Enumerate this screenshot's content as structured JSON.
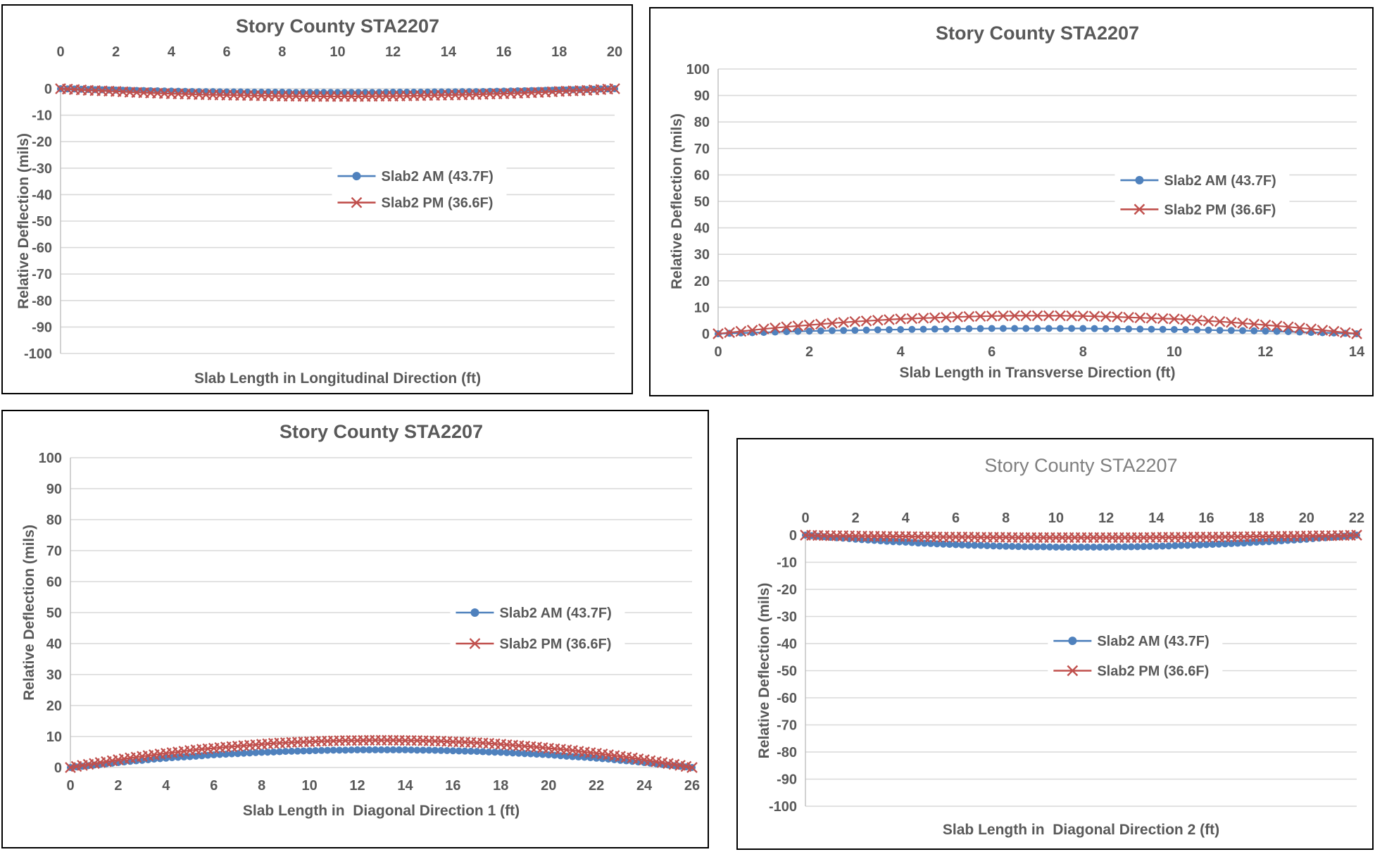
{
  "page": {
    "background": "#ffffff"
  },
  "colors": {
    "series_am": "#4F81BD",
    "series_pm": "#C0504D",
    "gridline": "#D9D9D9",
    "axis_line": "#BFBFBF",
    "text": "#595959",
    "light_title": "#7F7F7F",
    "panel_border": "#000000"
  },
  "chart_data": [
    {
      "type": "line",
      "title": "Story County STA2207",
      "title_style": "bold",
      "xlabel": "Slab Length in Longitudinal Direction (ft)",
      "ylabel": "Relative Deflection (mils)",
      "x_axis_position": "top",
      "legend_position": "inside-center-right",
      "grid": "horizontal",
      "xlim": [
        0,
        20
      ],
      "ylim": [
        -100,
        0
      ],
      "x_ticks": [
        0,
        2,
        4,
        6,
        8,
        10,
        12,
        14,
        16,
        18,
        20
      ],
      "y_ticks": [
        0,
        -10,
        -20,
        -30,
        -40,
        -50,
        -60,
        -70,
        -80,
        -90,
        -100
      ],
      "x_start": 0,
      "x_step": 0.5,
      "series": [
        {
          "name": "Slab2 AM (43.7F)",
          "color": "#4F81BD",
          "marker": "circle",
          "values": [
            0,
            -0.1,
            -0.3,
            -0.4,
            -0.5,
            -0.6,
            -0.7,
            -0.8,
            -0.9,
            -1.0,
            -1.1,
            -1.1,
            -1.2,
            -1.2,
            -1.3,
            -1.3,
            -1.3,
            -1.4,
            -1.4,
            -1.4,
            -1.4,
            -1.4,
            -1.4,
            -1.4,
            -1.3,
            -1.3,
            -1.3,
            -1.2,
            -1.2,
            -1.1,
            -1.1,
            -1.0,
            -0.9,
            -0.8,
            -0.7,
            -0.6,
            -0.5,
            -0.4,
            -0.3,
            -0.1,
            0
          ]
        },
        {
          "name": "Slab2 PM (36.6F)",
          "color": "#C0504D",
          "marker": "x",
          "values": [
            0,
            -0.3,
            -0.6,
            -0.8,
            -1.0,
            -1.3,
            -1.5,
            -1.7,
            -1.9,
            -2.0,
            -2.2,
            -2.3,
            -2.4,
            -2.5,
            -2.6,
            -2.7,
            -2.8,
            -2.8,
            -2.9,
            -2.9,
            -2.9,
            -2.9,
            -2.9,
            -2.8,
            -2.8,
            -2.7,
            -2.6,
            -2.5,
            -2.4,
            -2.3,
            -2.2,
            -2.0,
            -1.9,
            -1.7,
            -1.5,
            -1.3,
            -1.0,
            -0.8,
            -0.6,
            -0.3,
            0
          ]
        }
      ]
    },
    {
      "type": "line",
      "title": "Story County STA2207",
      "title_style": "bold",
      "xlabel": "Slab Length in Transverse Direction (ft)",
      "ylabel": "Relative Deflection (mils)",
      "x_axis_position": "bottom",
      "legend_position": "inside-center-right",
      "grid": "horizontal",
      "xlim": [
        0,
        14
      ],
      "ylim": [
        0,
        100
      ],
      "x_ticks": [
        0,
        2,
        4,
        6,
        8,
        10,
        12,
        14
      ],
      "y_ticks": [
        100,
        90,
        80,
        70,
        60,
        50,
        40,
        30,
        20,
        10,
        0
      ],
      "x_start": 0,
      "x_step": 0.5,
      "series": [
        {
          "name": "Slab2 AM (43.7F)",
          "color": "#4F81BD",
          "marker": "circle",
          "values": [
            0,
            0.3,
            0.5,
            0.8,
            1.0,
            1.2,
            1.3,
            1.5,
            1.6,
            1.7,
            1.8,
            1.9,
            2.0,
            2.0,
            2.0,
            2.0,
            2.0,
            1.9,
            1.8,
            1.7,
            1.6,
            1.5,
            1.3,
            1.2,
            1.0,
            0.8,
            0.5,
            0.3,
            0
          ]
        },
        {
          "name": "Slab2 PM (36.6F)",
          "color": "#C0504D",
          "marker": "x",
          "values": [
            0,
            0.9,
            1.8,
            2.6,
            3.3,
            4.0,
            4.6,
            5.1,
            5.6,
            5.9,
            6.2,
            6.5,
            6.7,
            6.8,
            6.8,
            6.8,
            6.7,
            6.5,
            6.2,
            5.9,
            5.6,
            5.1,
            4.6,
            4.0,
            3.3,
            2.6,
            1.8,
            0.9,
            0
          ]
        }
      ]
    },
    {
      "type": "line",
      "title": "Story County STA2207",
      "title_style": "bold",
      "xlabel": "Slab Length in  Diagonal Direction 1 (ft)",
      "ylabel": "Relative Deflection (mils)",
      "x_axis_position": "bottom",
      "legend_position": "inside-center-right",
      "grid": "horizontal",
      "xlim": [
        0,
        26
      ],
      "ylim": [
        0,
        100
      ],
      "x_ticks": [
        0,
        2,
        4,
        6,
        8,
        10,
        12,
        14,
        16,
        18,
        20,
        22,
        24,
        26
      ],
      "y_ticks": [
        100,
        90,
        80,
        70,
        60,
        50,
        40,
        30,
        20,
        10,
        0
      ],
      "x_start": 0,
      "x_step": 0.5,
      "series": [
        {
          "name": "Slab2 AM (43.7F)",
          "color": "#4F81BD",
          "marker": "circle",
          "values": [
            0,
            0.4,
            0.8,
            1.2,
            1.6,
            2.0,
            2.3,
            2.7,
            3.0,
            3.3,
            3.5,
            3.8,
            4.1,
            4.3,
            4.5,
            4.7,
            4.9,
            5.0,
            5.2,
            5.3,
            5.4,
            5.5,
            5.6,
            5.6,
            5.7,
            5.7,
            5.7,
            5.7,
            5.7,
            5.6,
            5.6,
            5.5,
            5.4,
            5.3,
            5.2,
            5.0,
            4.9,
            4.7,
            4.5,
            4.3,
            4.1,
            3.8,
            3.5,
            3.3,
            3.0,
            2.7,
            2.3,
            2.0,
            1.6,
            1.2,
            0.8,
            0.4,
            0
          ]
        },
        {
          "name": "Slab2 PM (36.6F)",
          "color": "#C0504D",
          "marker": "x",
          "values": [
            0,
            0.7,
            1.3,
            1.9,
            2.5,
            3.1,
            3.6,
            4.1,
            4.6,
            5.0,
            5.5,
            5.9,
            6.2,
            6.6,
            6.9,
            7.2,
            7.5,
            7.8,
            8.0,
            8.2,
            8.3,
            8.5,
            8.6,
            8.7,
            8.7,
            8.8,
            8.8,
            8.8,
            8.7,
            8.7,
            8.6,
            8.5,
            8.3,
            8.2,
            8.0,
            7.8,
            7.5,
            7.2,
            6.9,
            6.6,
            6.2,
            5.9,
            5.5,
            5.0,
            4.6,
            4.1,
            3.6,
            3.1,
            2.5,
            1.9,
            1.3,
            0.7,
            0
          ]
        }
      ]
    },
    {
      "type": "line",
      "title": "Story County STA2207",
      "title_style": "light",
      "xlabel": "Slab Length in  Diagonal Direction 2 (ft)",
      "ylabel": "Relative Deflection (mils)",
      "x_axis_position": "top",
      "legend_position": "inside-center-right",
      "grid": "horizontal",
      "xlim": [
        0,
        22
      ],
      "ylim": [
        -100,
        0
      ],
      "x_ticks": [
        0,
        2,
        4,
        6,
        8,
        10,
        12,
        14,
        16,
        18,
        20,
        22
      ],
      "y_ticks": [
        0,
        -10,
        -20,
        -30,
        -40,
        -50,
        -60,
        -70,
        -80,
        -90,
        -100
      ],
      "x_start": 0,
      "x_step": 0.5,
      "series": [
        {
          "name": "Slab2 AM (43.7F)",
          "color": "#4F81BD",
          "marker": "circle",
          "values": [
            0,
            -0.4,
            -0.8,
            -1.1,
            -1.5,
            -1.8,
            -2.1,
            -2.4,
            -2.6,
            -2.9,
            -3.1,
            -3.3,
            -3.5,
            -3.7,
            -3.8,
            -4.0,
            -4.1,
            -4.2,
            -4.3,
            -4.3,
            -4.4,
            -4.4,
            -4.4,
            -4.4,
            -4.4,
            -4.3,
            -4.3,
            -4.2,
            -4.1,
            -4.0,
            -3.8,
            -3.7,
            -3.5,
            -3.3,
            -3.1,
            -2.9,
            -2.6,
            -2.4,
            -2.1,
            -1.8,
            -1.5,
            -1.1,
            -0.8,
            -0.4,
            0
          ]
        },
        {
          "name": "Slab2 PM (36.6F)",
          "color": "#C0504D",
          "marker": "x",
          "values": [
            0,
            -0.1,
            -0.2,
            -0.2,
            -0.3,
            -0.4,
            -0.4,
            -0.5,
            -0.5,
            -0.6,
            -0.6,
            -0.7,
            -0.7,
            -0.7,
            -0.8,
            -0.8,
            -0.8,
            -0.9,
            -0.9,
            -0.9,
            -0.9,
            -0.9,
            -0.9,
            -0.9,
            -0.9,
            -0.9,
            -0.9,
            -0.9,
            -0.8,
            -0.8,
            -0.8,
            -0.7,
            -0.7,
            -0.7,
            -0.6,
            -0.6,
            -0.5,
            -0.5,
            -0.4,
            -0.4,
            -0.3,
            -0.2,
            -0.2,
            -0.1,
            0
          ]
        }
      ]
    }
  ]
}
